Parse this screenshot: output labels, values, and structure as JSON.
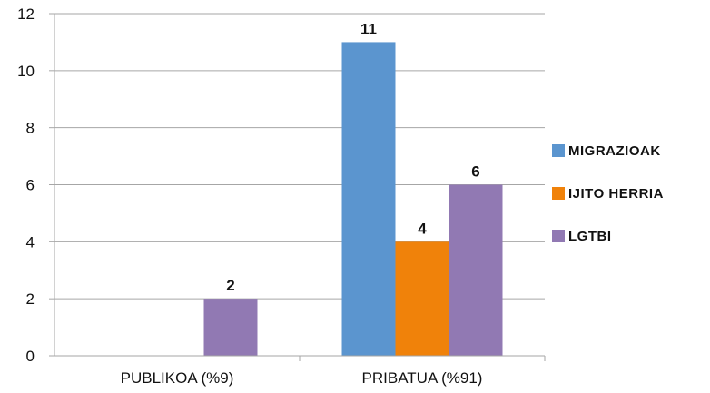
{
  "chart_data": {
    "type": "bar",
    "categories": [
      "PUBLIKOA (%9)",
      "PRIBATUA (%91)"
    ],
    "series": [
      {
        "name": "MIGRAZIOAK",
        "color": "#5b95cf",
        "values": [
          0,
          11
        ]
      },
      {
        "name": "IJITO HERRIA",
        "color": "#f0820a",
        "values": [
          0,
          4
        ]
      },
      {
        "name": "LGTBI",
        "color": "#9179b3",
        "values": [
          2,
          6
        ]
      }
    ],
    "data_labels": [
      [
        null,
        11
      ],
      [
        null,
        4
      ],
      [
        2,
        6
      ]
    ],
    "ylim": [
      0,
      12
    ],
    "yticks": [
      0,
      2,
      4,
      6,
      8,
      10,
      12
    ],
    "grid": true,
    "legend": "right"
  }
}
